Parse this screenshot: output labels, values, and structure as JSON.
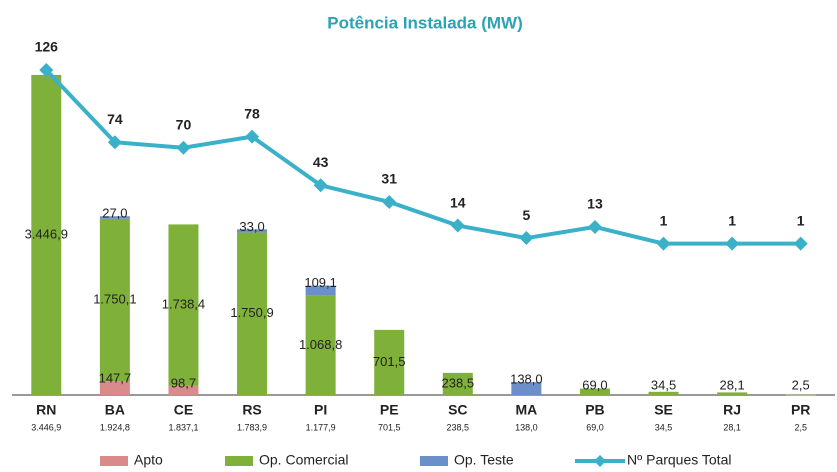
{
  "chart_data": {
    "type": "bar",
    "title": "Potência Instalada (MW)",
    "categories": [
      "RN",
      "BA",
      "CE",
      "RS",
      "PI",
      "PE",
      "SC",
      "MA",
      "PB",
      "SE",
      "RJ",
      "PR"
    ],
    "totals": [
      3446.9,
      1924.8,
      1837.1,
      1783.9,
      1177.9,
      701.5,
      238.5,
      138.0,
      69.0,
      34.5,
      28.1,
      2.5
    ],
    "total_labels": [
      "3.446,9",
      "1.924,8",
      "1.837,1",
      "1.783,9",
      "1.177,9",
      "701,5",
      "238,5",
      "138,0",
      "69,0",
      "34,5",
      "28,1",
      "2,5"
    ],
    "stacked": true,
    "ylim": [
      0,
      3500
    ],
    "y2lim": [
      -108,
      126
    ],
    "series": [
      {
        "name": "Apto",
        "type": "bar",
        "color": "#d98a8a",
        "values": [
          null,
          147.7,
          98.7,
          null,
          null,
          null,
          null,
          null,
          null,
          null,
          null,
          null
        ],
        "value_labels": [
          null,
          "147,7",
          "98,7",
          null,
          null,
          null,
          null,
          null,
          null,
          null,
          null,
          null
        ]
      },
      {
        "name": "Op. Comercial",
        "type": "bar",
        "color": "#7fb03a",
        "values": [
          3446.9,
          1750.1,
          1738.4,
          1750.9,
          1068.8,
          701.5,
          238.5,
          null,
          69.0,
          34.5,
          28.1,
          2.5
        ],
        "value_labels": [
          "3.446,9",
          "1.750,1",
          "1.738,4",
          "1.750,9",
          "1.068,8",
          "701,5",
          "238,5",
          null,
          "69,0",
          "34,5",
          "28,1",
          "2,5"
        ]
      },
      {
        "name": "Op. Teste",
        "type": "bar",
        "color": "#6a8fc9",
        "values": [
          null,
          27.0,
          null,
          33.0,
          109.1,
          null,
          null,
          138.0,
          null,
          null,
          null,
          null
        ],
        "value_labels": [
          null,
          "27,0",
          null,
          "33,0",
          "109,1",
          null,
          null,
          "138,0",
          null,
          null,
          null,
          null
        ]
      },
      {
        "name": "Nº Parques Total",
        "type": "line",
        "axis": "y2",
        "color": "#3bb0c9",
        "values": [
          126,
          74,
          70,
          78,
          43,
          31,
          14,
          5,
          13,
          1,
          1,
          1
        ]
      }
    ]
  }
}
